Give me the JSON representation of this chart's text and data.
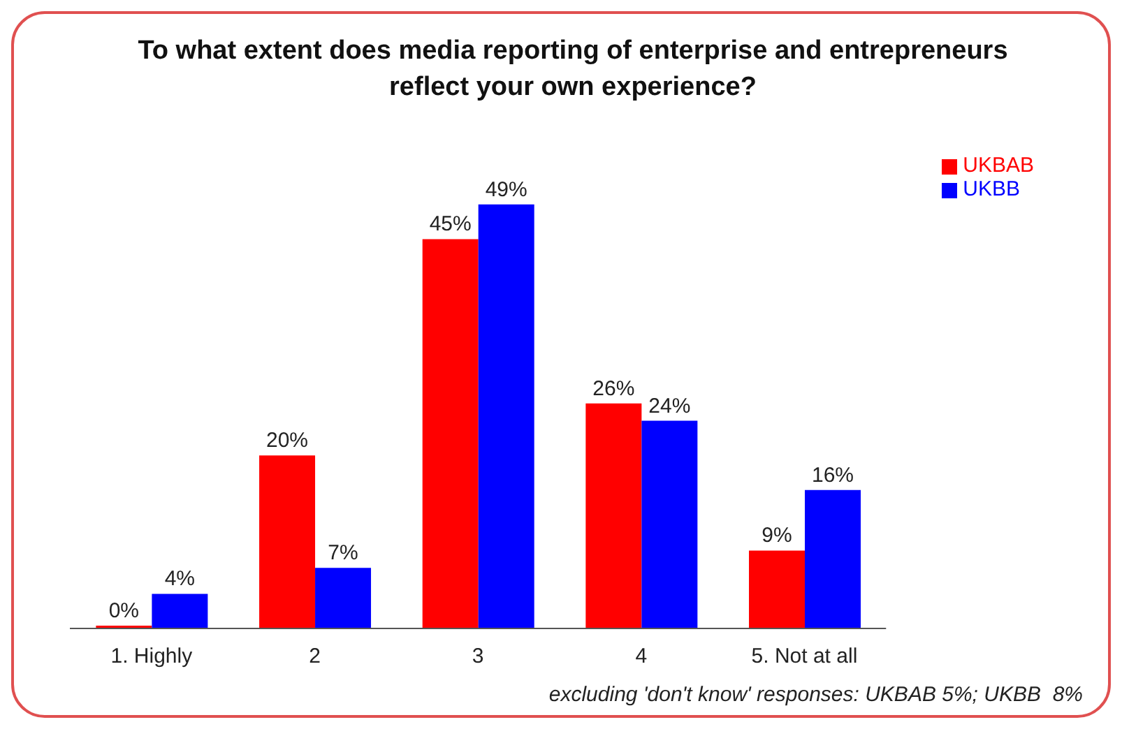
{
  "chart_data": {
    "type": "bar",
    "title": "To what extent does media reporting of enterprise and entrepreneurs reflect your own experience?",
    "categories": [
      "1. Highly",
      "2",
      "3",
      "4",
      "5. Not at all"
    ],
    "series": [
      {
        "name": "UKBAB",
        "color": "#ff0000",
        "values": [
          0,
          20,
          45,
          26,
          9
        ],
        "value_labels": [
          "0%",
          "20%",
          "45%",
          "26%",
          "9%"
        ]
      },
      {
        "name": "UKBB",
        "color": "#0000ff",
        "values": [
          4,
          7,
          49,
          24,
          16
        ],
        "value_labels": [
          "4%",
          "7%",
          "49%",
          "24%",
          "16%"
        ]
      }
    ],
    "legend": "top right",
    "grid": false,
    "annotations": [
      "excluding 'don't know' responses: UKBAB 5%; UKBB  8%"
    ]
  }
}
